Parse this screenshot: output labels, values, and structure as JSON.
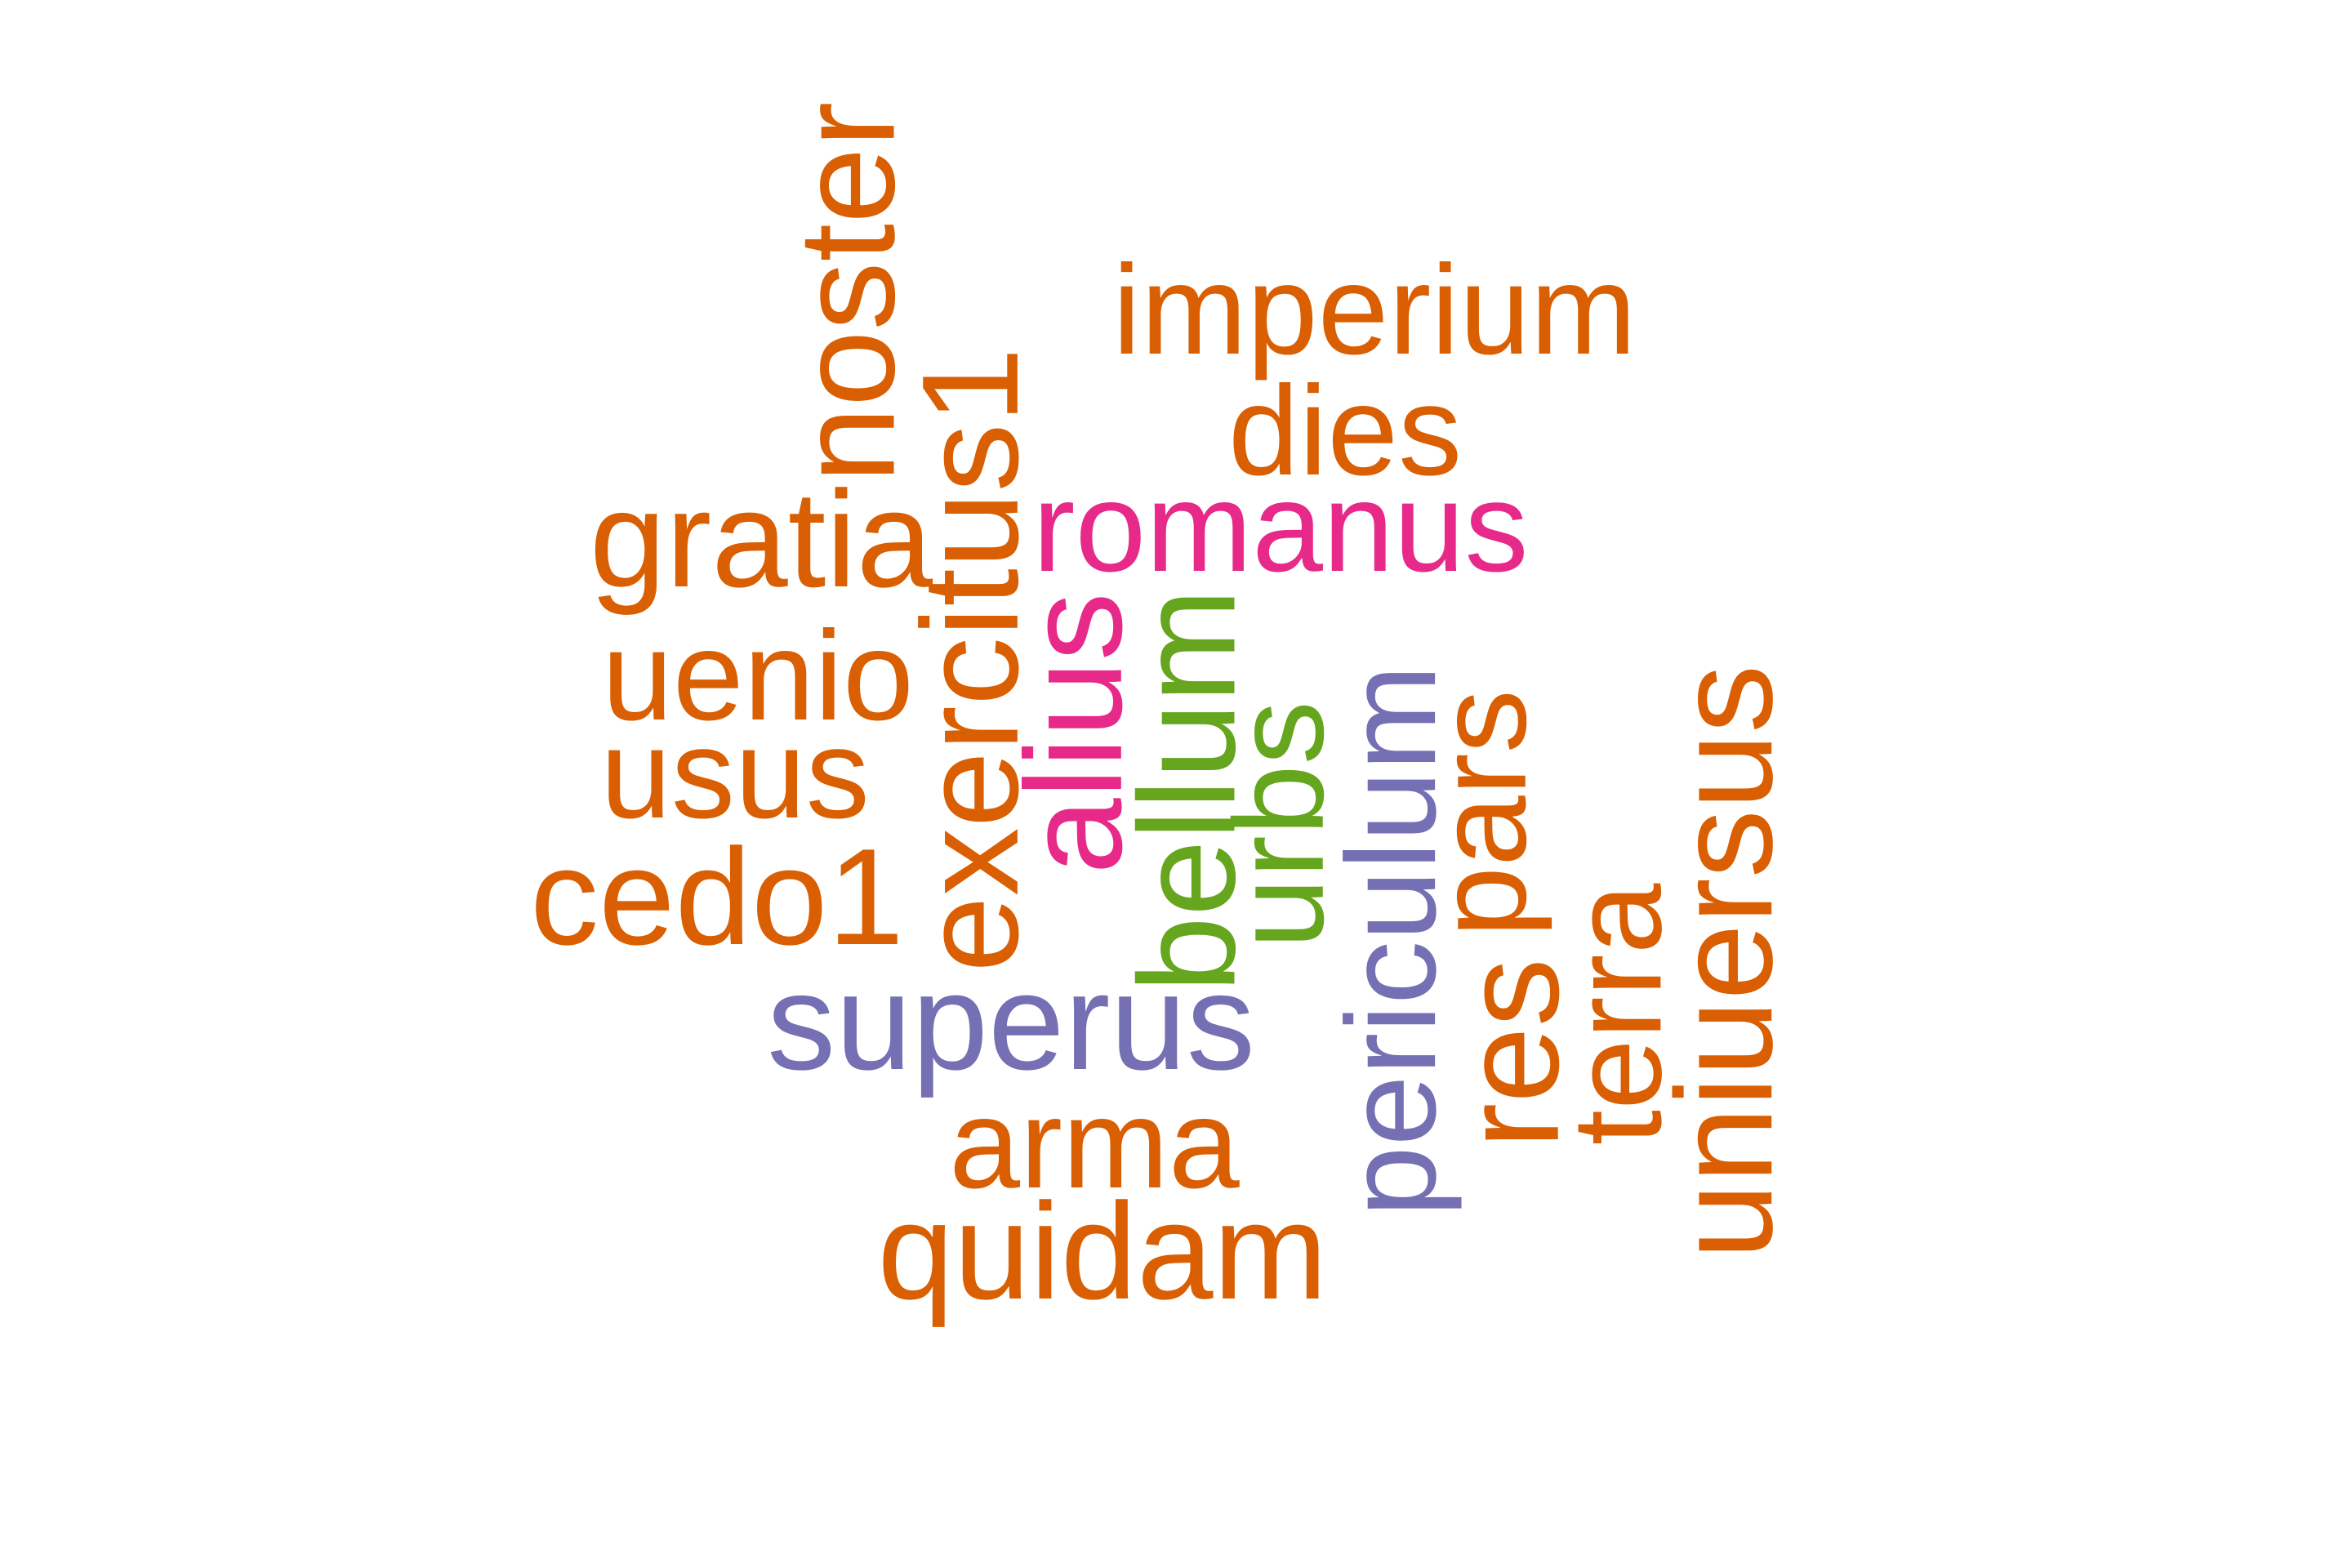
{
  "colors": {
    "orange": "#d95f02",
    "magenta": "#e7298a",
    "green": "#66a61e",
    "purple": "#7570b3",
    "background": "#ffffff"
  },
  "words": [
    {
      "text": "noster",
      "color": "orange",
      "orientation": "vertical"
    },
    {
      "text": "imperium",
      "color": "orange",
      "orientation": "horizontal"
    },
    {
      "text": "dies",
      "color": "orange",
      "orientation": "horizontal"
    },
    {
      "text": "exercitus1",
      "color": "orange",
      "orientation": "vertical"
    },
    {
      "text": "gratia",
      "color": "orange",
      "orientation": "horizontal"
    },
    {
      "text": "romanus",
      "color": "magenta",
      "orientation": "horizontal"
    },
    {
      "text": "uenio",
      "color": "orange",
      "orientation": "horizontal"
    },
    {
      "text": "usus",
      "color": "orange",
      "orientation": "horizontal"
    },
    {
      "text": "alius",
      "color": "magenta",
      "orientation": "vertical"
    },
    {
      "text": "bellum",
      "color": "green",
      "orientation": "vertical"
    },
    {
      "text": "urbs",
      "color": "green",
      "orientation": "vertical"
    },
    {
      "text": "periculum",
      "color": "purple",
      "orientation": "vertical"
    },
    {
      "text": "pars",
      "color": "orange",
      "orientation": "vertical"
    },
    {
      "text": "uniuersus",
      "color": "orange",
      "orientation": "vertical"
    },
    {
      "text": "cedo1",
      "color": "orange",
      "orientation": "horizontal"
    },
    {
      "text": "superus",
      "color": "purple",
      "orientation": "horizontal"
    },
    {
      "text": "res",
      "color": "orange",
      "orientation": "vertical"
    },
    {
      "text": "terra",
      "color": "orange",
      "orientation": "vertical"
    },
    {
      "text": "arma",
      "color": "orange",
      "orientation": "horizontal"
    },
    {
      "text": "quidam",
      "color": "orange",
      "orientation": "horizontal"
    }
  ]
}
